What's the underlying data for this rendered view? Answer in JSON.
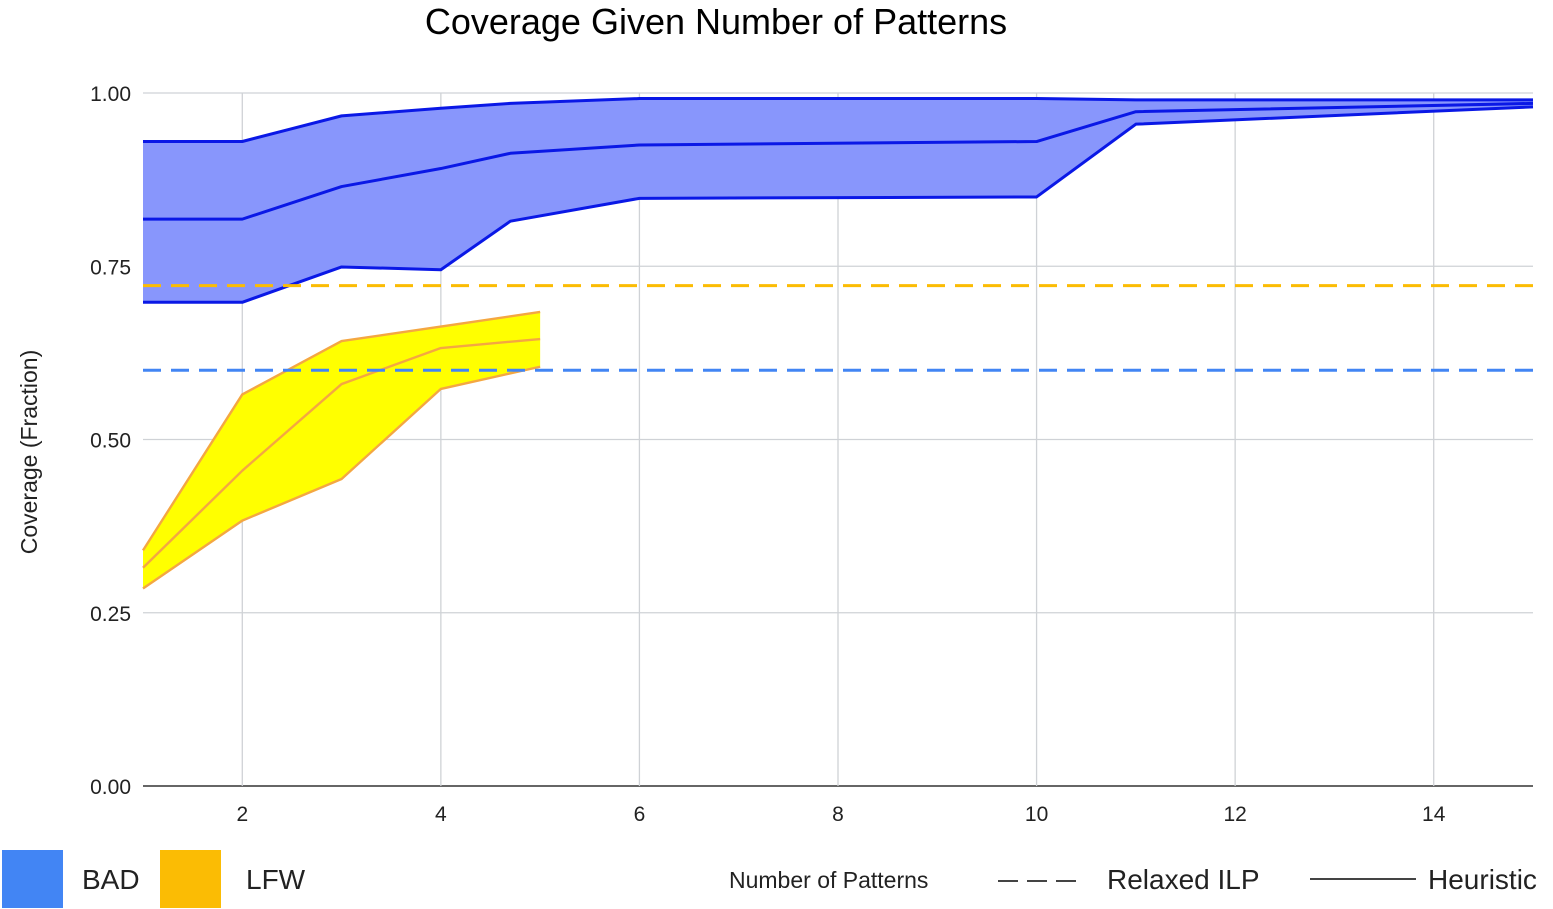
{
  "chart_data": {
    "type": "area",
    "title": "Coverage Given Number of Patterns",
    "xlabel": "Number of Patterns",
    "ylabel": "Coverage (Fraction)",
    "xlim": [
      1,
      15
    ],
    "ylim": [
      0,
      1
    ],
    "x_ticks": [
      2,
      4,
      6,
      8,
      10,
      12,
      14
    ],
    "x_tick_labels": [
      "2",
      "4",
      "6",
      "8",
      "10",
      "12",
      "14"
    ],
    "y_ticks": [
      0,
      0.25,
      0.5,
      0.75,
      1.0
    ],
    "y_tick_labels": [
      "0.00",
      "0.25",
      "0.50",
      "0.75",
      "1.00"
    ],
    "grid": true,
    "legend_placement": "bottom",
    "legend": {
      "datasets": [
        {
          "name": "BAD",
          "color": "#4285f4"
        },
        {
          "name": "LFW",
          "color": "#fbbc04"
        }
      ],
      "line_styles": [
        {
          "name": "Relaxed ILP",
          "style": "dashed"
        },
        {
          "name": "Heuristic",
          "style": "solid"
        }
      ]
    },
    "series": [
      {
        "name": "BAD",
        "method": "Heuristic",
        "fill_color": "#8896fc",
        "line_color": "#0a18e6",
        "x": [
          1,
          2,
          3,
          4,
          4.7,
          6,
          10,
          11,
          15
        ],
        "upper": [
          0.93,
          0.93,
          0.967,
          0.978,
          0.985,
          0.992,
          0.992,
          0.99,
          0.99
        ],
        "mean": [
          0.818,
          0.818,
          0.865,
          0.891,
          0.913,
          0.925,
          0.93,
          0.973,
          0.985
        ],
        "lower": [
          0.698,
          0.698,
          0.749,
          0.745,
          0.815,
          0.848,
          0.85,
          0.955,
          0.98
        ]
      },
      {
        "name": "LFW",
        "method": "Heuristic",
        "fill_color": "#ffff00",
        "line_color": "#f4a742",
        "x": [
          1,
          2,
          3,
          4,
          5
        ],
        "upper": [
          0.34,
          0.565,
          0.642,
          0.663,
          0.684
        ],
        "mean": [
          0.315,
          0.455,
          0.58,
          0.632,
          0.645
        ],
        "lower": [
          0.285,
          0.383,
          0.443,
          0.573,
          0.605
        ]
      }
    ],
    "reference_lines": [
      {
        "name": "Relaxed ILP",
        "dataset": "BAD",
        "y": 0.6,
        "color": "#4285f4",
        "style": "dashed"
      },
      {
        "name": "Relaxed ILP",
        "dataset": "LFW",
        "y": 0.722,
        "color": "#fbbc04",
        "style": "dashed"
      }
    ]
  }
}
